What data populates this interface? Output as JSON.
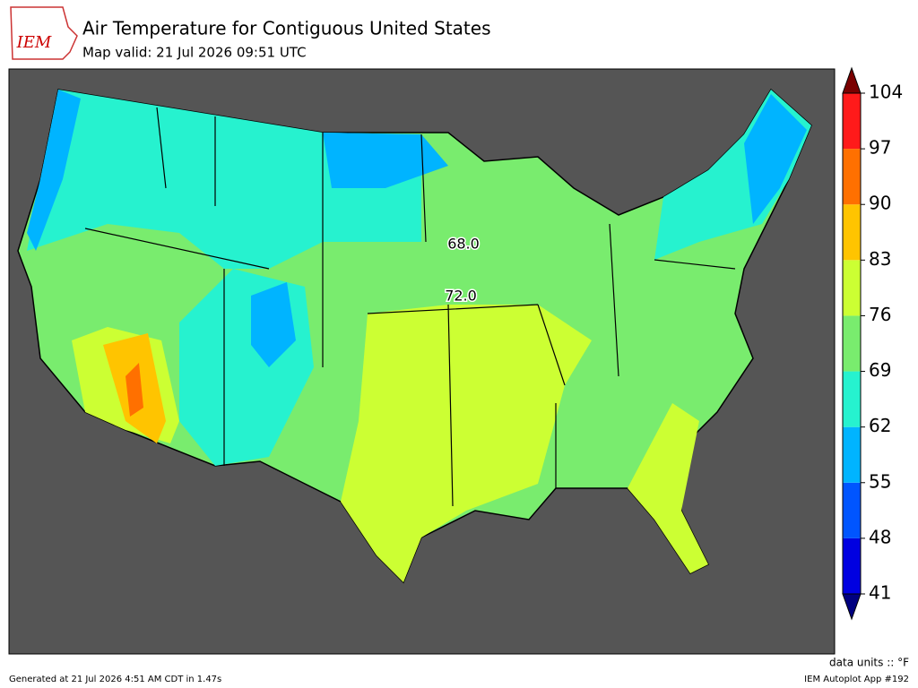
{
  "header": {
    "logo": "IEM",
    "title": "Air Temperature for Contiguous United States",
    "subtitle": "Map valid: 21 Jul 2026 09:51 UTC"
  },
  "map": {
    "contour_labels": [
      "68.0",
      "72.0"
    ]
  },
  "colorbar": {
    "ticks": [
      41,
      48,
      55,
      62,
      69,
      76,
      83,
      90,
      97,
      104
    ],
    "colors": [
      "#0000e0",
      "#0055ff",
      "#00b4ff",
      "#26f2cf",
      "#79ec6e",
      "#ccff33",
      "#ffc400",
      "#ff7000",
      "#ff1a1a"
    ],
    "over_color": "#7a0000",
    "under_color": "#000080"
  },
  "footer": {
    "units": "data units :: °F",
    "generated": "Generated at 21 Jul 2026 4:51 AM CDT in 1.47s",
    "app": "IEM Autoplot App #192"
  }
}
